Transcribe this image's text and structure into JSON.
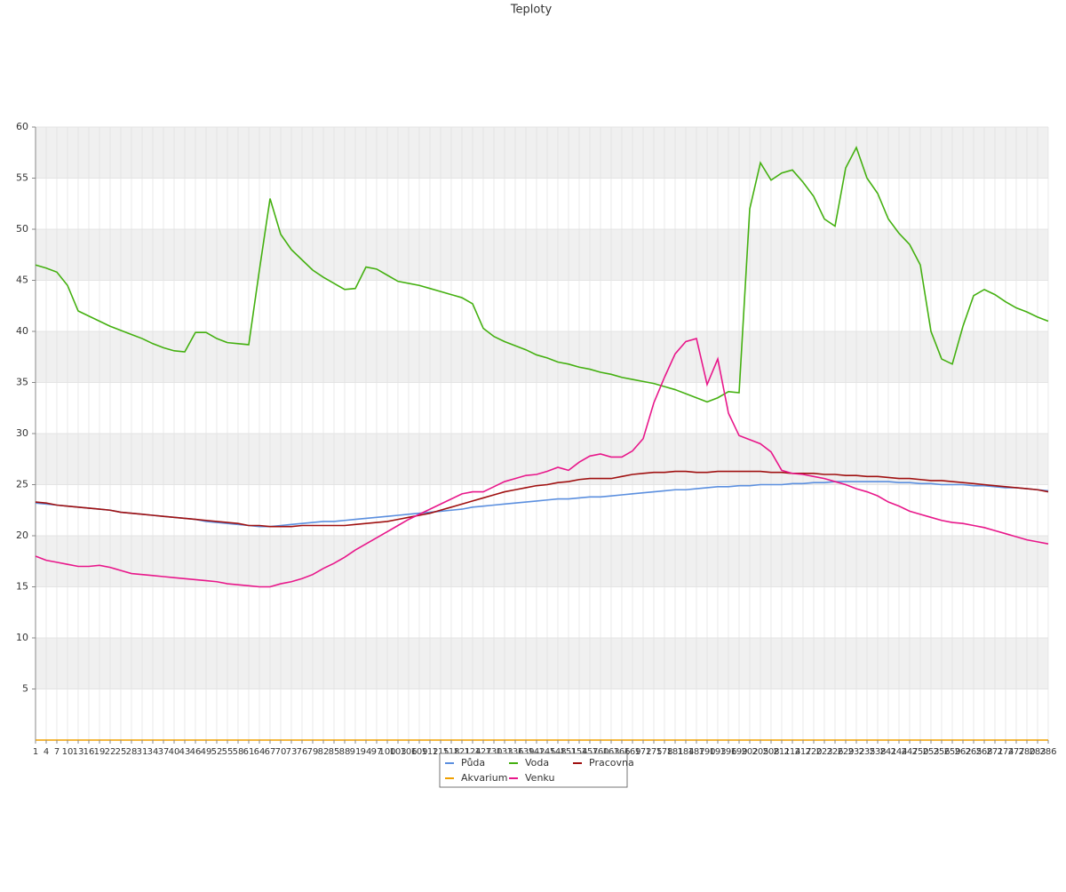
{
  "chart_data": {
    "type": "line",
    "title": "Teploty",
    "categories": [
      1,
      4,
      7,
      10,
      13,
      16,
      19,
      22,
      25,
      28,
      31,
      34,
      37,
      40,
      43,
      46,
      49,
      52,
      55,
      58,
      61,
      64,
      67,
      70,
      73,
      76,
      79,
      82,
      85,
      88,
      91,
      94,
      97,
      100,
      103,
      106,
      109,
      112,
      115,
      118,
      121,
      124,
      127,
      130,
      133,
      136,
      139,
      142,
      145,
      148,
      151,
      154,
      157,
      160,
      163,
      166,
      169,
      172,
      175,
      178,
      181,
      184,
      187,
      190,
      193,
      196,
      199,
      202,
      205,
      208,
      211,
      214,
      217,
      220,
      223,
      226,
      229,
      232,
      235,
      238,
      241,
      244,
      247,
      250,
      253,
      256,
      259,
      262,
      265,
      268,
      271,
      274,
      277,
      280,
      283,
      286
    ],
    "series": [
      {
        "name": "Půda",
        "color": "#5b8fdf",
        "values": [
          23.2,
          23.1,
          23.0,
          22.9,
          22.8,
          22.7,
          22.6,
          22.5,
          22.3,
          22.2,
          22.1,
          22.0,
          21.9,
          21.8,
          21.7,
          21.6,
          21.4,
          21.3,
          21.2,
          21.1,
          21.0,
          20.9,
          20.9,
          21.0,
          21.1,
          21.2,
          21.3,
          21.4,
          21.4,
          21.5,
          21.6,
          21.7,
          21.8,
          21.9,
          22.0,
          22.1,
          22.2,
          22.3,
          22.4,
          22.5,
          22.6,
          22.8,
          22.9,
          23.0,
          23.1,
          23.2,
          23.3,
          23.4,
          23.5,
          23.6,
          23.6,
          23.7,
          23.8,
          23.8,
          23.9,
          24.0,
          24.1,
          24.2,
          24.3,
          24.4,
          24.5,
          24.5,
          24.6,
          24.7,
          24.8,
          24.8,
          24.9,
          24.9,
          25.0,
          25.0,
          25.0,
          25.1,
          25.1,
          25.2,
          25.2,
          25.3,
          25.3,
          25.3,
          25.3,
          25.3,
          25.3,
          25.2,
          25.2,
          25.1,
          25.1,
          25.0,
          25.0,
          25.0,
          24.9,
          24.9,
          24.8,
          24.7,
          24.7,
          24.6,
          24.5,
          24.4
        ]
      },
      {
        "name": "Voda",
        "color": "#44b010",
        "values": [
          46.5,
          46.2,
          45.8,
          44.5,
          42.0,
          41.5,
          41.0,
          40.5,
          40.1,
          39.7,
          39.3,
          38.8,
          38.4,
          38.1,
          38.0,
          39.9,
          39.9,
          39.3,
          38.9,
          38.8,
          38.7,
          46.0,
          53.0,
          49.5,
          48.0,
          47.0,
          46.0,
          45.3,
          44.7,
          44.1,
          44.2,
          46.3,
          46.1,
          45.5,
          44.9,
          44.7,
          44.5,
          44.2,
          43.9,
          43.6,
          43.3,
          42.7,
          40.3,
          39.5,
          39.0,
          38.6,
          38.2,
          37.7,
          37.4,
          37.0,
          36.8,
          36.5,
          36.3,
          36.0,
          35.8,
          35.5,
          35.3,
          35.1,
          34.9,
          34.6,
          34.3,
          33.9,
          33.5,
          33.1,
          33.5,
          34.1,
          34.0,
          52.0,
          56.5,
          54.8,
          55.5,
          55.8,
          54.6,
          53.2,
          51.0,
          50.3,
          56.0,
          58.0,
          55.0,
          53.5,
          51.0,
          49.6,
          48.5,
          46.5,
          40.0,
          37.3,
          36.8,
          40.5,
          43.5,
          44.1,
          43.6,
          42.9,
          42.3,
          41.9,
          41.4,
          41.0
        ]
      },
      {
        "name": "Pracovna",
        "color": "#a01010",
        "values": [
          23.3,
          23.2,
          23.0,
          22.9,
          22.8,
          22.7,
          22.6,
          22.5,
          22.3,
          22.2,
          22.1,
          22.0,
          21.9,
          21.8,
          21.7,
          21.6,
          21.5,
          21.4,
          21.3,
          21.2,
          21.0,
          21.0,
          20.9,
          20.9,
          20.9,
          21.0,
          21.0,
          21.0,
          21.0,
          21.0,
          21.1,
          21.2,
          21.3,
          21.4,
          21.6,
          21.8,
          22.0,
          22.2,
          22.5,
          22.8,
          23.1,
          23.4,
          23.7,
          24.0,
          24.3,
          24.5,
          24.7,
          24.9,
          25.0,
          25.2,
          25.3,
          25.5,
          25.6,
          25.6,
          25.6,
          25.8,
          26.0,
          26.1,
          26.2,
          26.2,
          26.3,
          26.3,
          26.2,
          26.2,
          26.3,
          26.3,
          26.3,
          26.3,
          26.3,
          26.2,
          26.2,
          26.1,
          26.1,
          26.1,
          26.0,
          26.0,
          25.9,
          25.9,
          25.8,
          25.8,
          25.7,
          25.6,
          25.6,
          25.5,
          25.4,
          25.4,
          25.3,
          25.2,
          25.1,
          25.0,
          24.9,
          24.8,
          24.7,
          24.6,
          24.5,
          24.3
        ]
      },
      {
        "name": "Akvarium",
        "color": "#f0a000",
        "values": [
          0,
          0,
          0,
          0,
          0,
          0,
          0,
          0,
          0,
          0,
          0,
          0,
          0,
          0,
          0,
          0,
          0,
          0,
          0,
          0,
          0,
          0,
          0,
          0,
          0,
          0,
          0,
          0,
          0,
          0,
          0,
          0,
          0,
          0,
          0,
          0,
          0,
          0,
          0,
          0,
          0,
          0,
          0,
          0,
          0,
          0,
          0,
          0,
          0,
          0,
          0,
          0,
          0,
          0,
          0,
          0,
          0,
          0,
          0,
          0,
          0,
          0,
          0,
          0,
          0,
          0,
          0,
          0,
          0,
          0,
          0,
          0,
          0,
          0,
          0,
          0,
          0,
          0,
          0,
          0,
          0,
          0,
          0,
          0,
          0,
          0,
          0,
          0,
          0,
          0,
          0,
          0,
          0,
          0,
          0,
          0
        ]
      },
      {
        "name": "Venku",
        "color": "#e8178a",
        "values": [
          18.0,
          17.6,
          17.4,
          17.2,
          17.0,
          17.0,
          17.1,
          16.9,
          16.6,
          16.3,
          16.2,
          16.1,
          16.0,
          15.9,
          15.8,
          15.7,
          15.6,
          15.5,
          15.3,
          15.2,
          15.1,
          15.0,
          15.0,
          15.3,
          15.5,
          15.8,
          16.2,
          16.8,
          17.3,
          17.9,
          18.6,
          19.2,
          19.8,
          20.4,
          21.0,
          21.6,
          22.1,
          22.6,
          23.1,
          23.6,
          24.1,
          24.3,
          24.3,
          24.8,
          25.3,
          25.6,
          25.9,
          26.0,
          26.3,
          26.7,
          26.4,
          27.2,
          27.8,
          28.0,
          27.7,
          27.7,
          28.3,
          29.5,
          33.0,
          35.5,
          37.8,
          39.0,
          39.3,
          34.8,
          37.3,
          32.0,
          29.8,
          29.4,
          29.0,
          28.2,
          26.4,
          26.1,
          26.0,
          25.8,
          25.6,
          25.3,
          25.0,
          24.6,
          24.3,
          23.9,
          23.3,
          22.9,
          22.4,
          22.1,
          21.8,
          21.5,
          21.3,
          21.2,
          21.0,
          20.8,
          20.5,
          20.2,
          19.9,
          19.6,
          19.4,
          19.2
        ]
      }
    ],
    "ylim": [
      0,
      60
    ],
    "yticks": [
      5,
      10,
      15,
      20,
      25,
      30,
      35,
      40,
      45,
      50,
      55,
      60
    ],
    "grid": true
  }
}
